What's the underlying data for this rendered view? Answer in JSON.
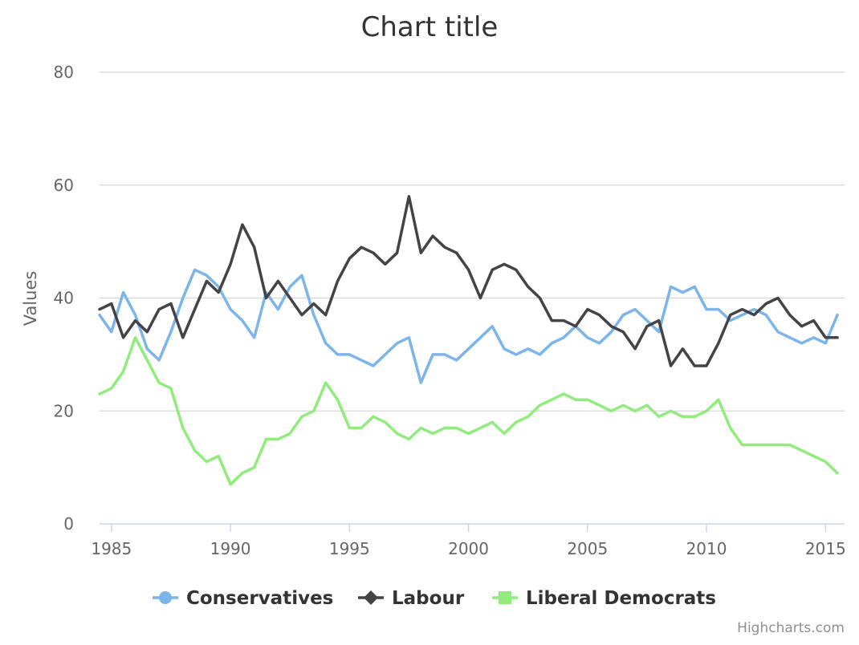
{
  "chart_data": {
    "type": "line",
    "title": "Chart title",
    "ylabel": "Values",
    "xlabel": "",
    "xlim": [
      1984.5,
      2015.8
    ],
    "ylim": [
      0,
      80
    ],
    "x_ticks": [
      "1985",
      "1990",
      "1995",
      "2000",
      "2005",
      "2010",
      "2015"
    ],
    "y_ticks": [
      "0",
      "20",
      "40",
      "60",
      "80"
    ],
    "grid": true,
    "legend_position": "bottom-center",
    "credits": "Highcharts.com",
    "x": [
      1984.5,
      1985.0,
      1985.5,
      1986.0,
      1986.5,
      1987.0,
      1987.5,
      1988.0,
      1988.5,
      1989.0,
      1989.5,
      1990.0,
      1990.5,
      1991.0,
      1991.5,
      1992.0,
      1992.5,
      1993.0,
      1993.5,
      1994.0,
      1994.5,
      1995.0,
      1995.5,
      1996.0,
      1996.5,
      1997.0,
      1997.5,
      1998.0,
      1998.5,
      1999.0,
      1999.5,
      2000.0,
      2000.5,
      2001.0,
      2001.5,
      2002.0,
      2002.5,
      2003.0,
      2003.5,
      2004.0,
      2004.5,
      2005.0,
      2005.5,
      2006.0,
      2006.5,
      2007.0,
      2007.5,
      2008.0,
      2008.5,
      2009.0,
      2009.5,
      2010.0,
      2010.5,
      2011.0,
      2011.5,
      2012.0,
      2012.5,
      2013.0,
      2013.5,
      2014.0,
      2014.5,
      2015.0,
      2015.5
    ],
    "series": [
      {
        "name": "Conservatives",
        "color": "#7cb5ec",
        "values": [
          37,
          34,
          41,
          37,
          31,
          29,
          34,
          40,
          45,
          44,
          42,
          38,
          36,
          33,
          41,
          38,
          42,
          44,
          37,
          32,
          30,
          30,
          29,
          28,
          30,
          32,
          33,
          25,
          30,
          30,
          29,
          31,
          33,
          35,
          31,
          30,
          31,
          30,
          32,
          33,
          35,
          33,
          32,
          34,
          37,
          38,
          36,
          34,
          42,
          41,
          42,
          38,
          38,
          36,
          37,
          38,
          37,
          34,
          33,
          32,
          33,
          32,
          37
        ]
      },
      {
        "name": "Labour",
        "color": "#434348",
        "values": [
          38,
          39,
          33,
          36,
          34,
          38,
          39,
          33,
          38,
          43,
          41,
          46,
          53,
          49,
          40,
          43,
          40,
          37,
          39,
          37,
          43,
          47,
          49,
          48,
          46,
          48,
          58,
          48,
          51,
          49,
          48,
          45,
          40,
          45,
          46,
          45,
          42,
          40,
          36,
          36,
          35,
          38,
          37,
          35,
          34,
          31,
          35,
          36,
          28,
          31,
          28,
          28,
          32,
          37,
          38,
          37,
          39,
          40,
          37,
          35,
          36,
          33,
          33
        ]
      },
      {
        "name": "Liberal Democrats",
        "color": "#90ed7d",
        "values": [
          23,
          24,
          27,
          33,
          29,
          25,
          24,
          17,
          13,
          11,
          12,
          7,
          9,
          10,
          15,
          15,
          16,
          19,
          20,
          25,
          22,
          17,
          17,
          19,
          18,
          16,
          15,
          17,
          16,
          17,
          17,
          16,
          17,
          18,
          16,
          18,
          19,
          21,
          22,
          23,
          22,
          22,
          21,
          20,
          21,
          20,
          21,
          19,
          20,
          19,
          19,
          20,
          22,
          17,
          14,
          14,
          14,
          14,
          14,
          13,
          12,
          11,
          9
        ]
      }
    ]
  }
}
